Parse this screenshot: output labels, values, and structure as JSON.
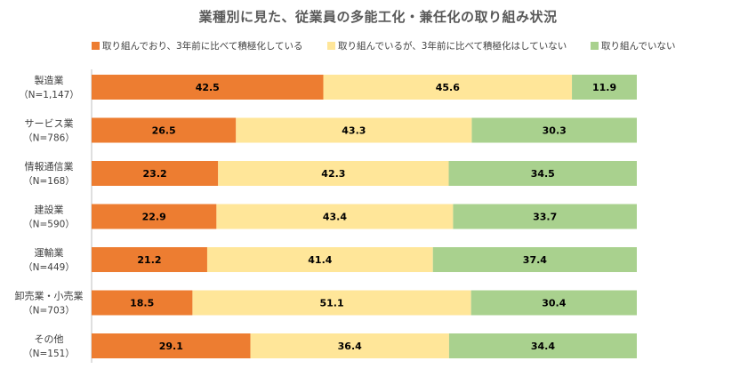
{
  "chart_data": {
    "type": "bar",
    "orientation": "horizontal",
    "stacked": "100%",
    "title": "業種別に見た、従業員の多能工化・兼任化の取り組み状況",
    "categories": [
      {
        "name": "製造業",
        "n": "（N=1,147）"
      },
      {
        "name": "サービス業",
        "n": "（N=786）"
      },
      {
        "name": "情報通信業",
        "n": "（N=168）"
      },
      {
        "name": "建設業",
        "n": "（N=590）"
      },
      {
        "name": "運輸業",
        "n": "（N=449）"
      },
      {
        "name": "卸売業・小売業",
        "n": "（N=703）"
      },
      {
        "name": "その他",
        "n": "（N=151）"
      }
    ],
    "series": [
      {
        "name": "取り組んでおり、3年前に比べて積極化している",
        "color": "#ED7D31",
        "values": [
          42.5,
          26.5,
          23.2,
          22.9,
          21.2,
          18.5,
          29.1
        ]
      },
      {
        "name": "取り組んでいるが、3年前に比べて積極化はしていない",
        "color": "#FFE699",
        "values": [
          45.6,
          43.3,
          42.3,
          43.4,
          41.4,
          51.1,
          36.4
        ]
      },
      {
        "name": "取り組んでいない",
        "color": "#A9D18E",
        "values": [
          11.9,
          30.3,
          34.5,
          33.7,
          37.4,
          30.4,
          34.4
        ]
      }
    ],
    "legend_position": "top",
    "grid": false
  }
}
